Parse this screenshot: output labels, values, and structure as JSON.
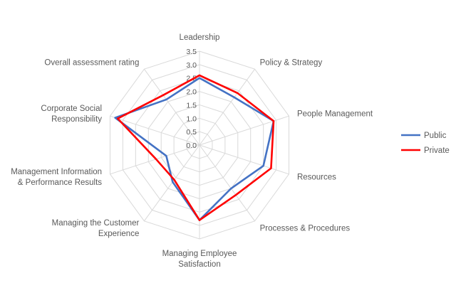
{
  "chart_data": {
    "type": "radar",
    "categories": [
      "Leadership",
      "Policy & Strategy",
      "People Management",
      "Resources",
      "Processes & Procedures",
      "Managing Employee Satisfaction",
      "Managing the Customer Experience",
      "Management Information & Performance Results",
      "Corporate Social Responsibility",
      "Overall assessment rating"
    ],
    "category_lines": [
      [
        "Leadership"
      ],
      [
        "Policy & Strategy"
      ],
      [
        "People Management"
      ],
      [
        "Resources"
      ],
      [
        "Processes & Procedures"
      ],
      [
        "Managing Employee",
        "Satisfaction"
      ],
      [
        "Managing the Customer",
        "Experience"
      ],
      [
        "Management Information",
        "& Performance Results"
      ],
      [
        "Corporate Social",
        "Responsibility"
      ],
      [
        "Overall assessment rating"
      ]
    ],
    "ticks": [
      "0.0",
      "0.5",
      "1.0",
      "1.5",
      "2.0",
      "2.5",
      "3.0",
      "3.5"
    ],
    "rmax": 3.5,
    "gridlines": true,
    "legend_position": "right",
    "series": [
      {
        "name": "Public",
        "color": "#4472C4",
        "values": [
          2.5,
          2.2,
          2.9,
          2.5,
          2.0,
          2.8,
          1.7,
          1.3,
          3.3,
          2.1
        ]
      },
      {
        "name": "Private",
        "color": "#FF0000",
        "values": [
          2.6,
          2.4,
          2.9,
          2.8,
          2.3,
          2.8,
          1.6,
          1.7,
          3.2,
          2.3
        ]
      }
    ]
  }
}
